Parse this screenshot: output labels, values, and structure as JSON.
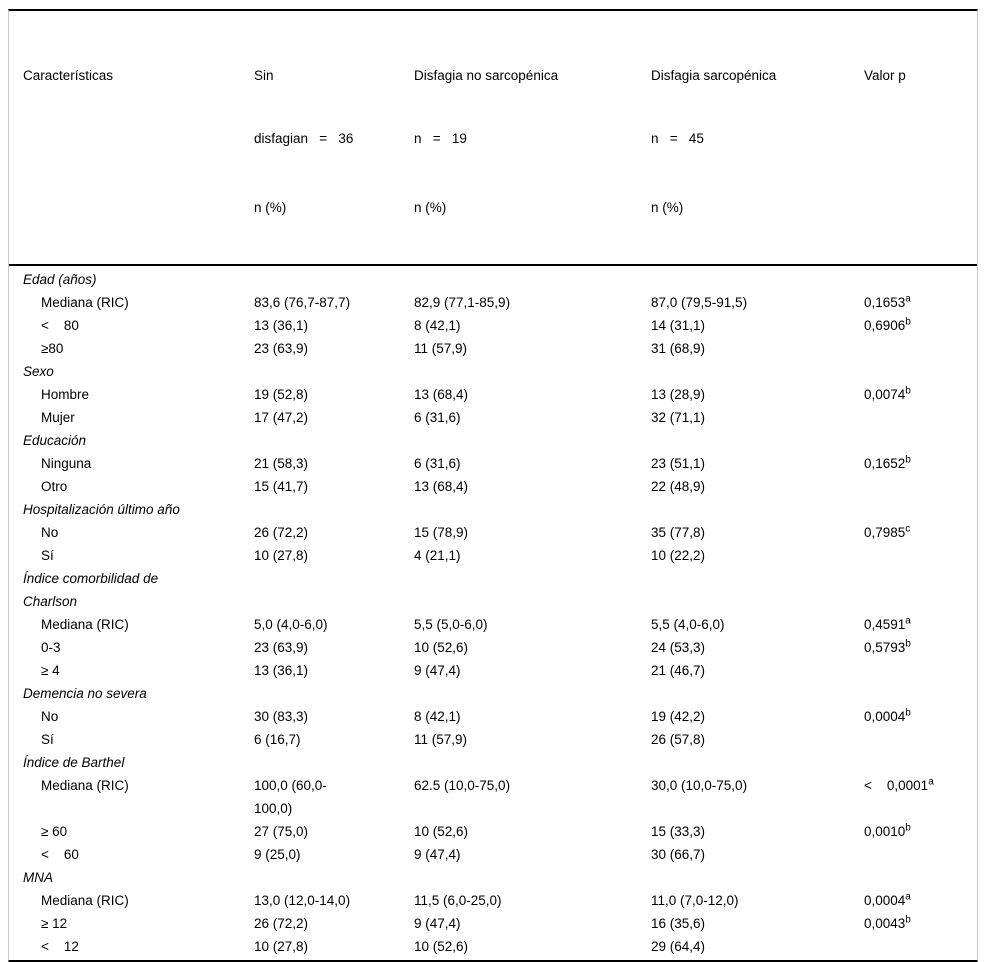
{
  "header": {
    "col1": "Características",
    "col2_line1": "Sin",
    "col2_line2": "disfagian   =   36",
    "col2_line3": "n (%)",
    "col3_line1": "Disfagia no sarcopénica",
    "col3_line2": "n   =   19",
    "col3_line3": "n (%)",
    "col4_line1": "Disfagia sarcopénica",
    "col4_line2": "n   =   45",
    "col4_line3": "n (%)",
    "col5": "Valor p"
  },
  "rows": [
    {
      "kind": "section",
      "label": "Edad (años)"
    },
    {
      "kind": "item",
      "label": "Mediana (RIC)",
      "cells": [
        "83,6 (76,7-87,7)",
        "82,9 (77,1-85,9)",
        "87,0 (79,5-91,5)"
      ],
      "p": "0,1653",
      "p_sup": "a"
    },
    {
      "kind": "item",
      "label": "<    80",
      "cells": [
        "13 (36,1)",
        "8 (42,1)",
        "14 (31,1)"
      ],
      "p": "0,6906",
      "p_sup": "b"
    },
    {
      "kind": "item",
      "label": "≥80",
      "cells": [
        "23 (63,9)",
        "11 (57,9)",
        "31 (68,9)"
      ]
    },
    {
      "kind": "section",
      "label": "Sexo"
    },
    {
      "kind": "item",
      "label": "Hombre",
      "cells": [
        "19 (52,8)",
        "13 (68,4)",
        "13 (28,9)"
      ],
      "p": "0,0074",
      "p_sup": "b"
    },
    {
      "kind": "item",
      "label": "Mujer",
      "cells": [
        "17 (47,2)",
        "6 (31,6)",
        "32 (71,1)"
      ]
    },
    {
      "kind": "section",
      "label": "Educación"
    },
    {
      "kind": "item",
      "label": "Ninguna",
      "cells": [
        "21 (58,3)",
        "6 (31,6)",
        "23 (51,1)"
      ],
      "p": "0,1652",
      "p_sup": "b"
    },
    {
      "kind": "item",
      "label": "Otro",
      "cells": [
        "15 (41,7)",
        "13 (68,4)",
        "22 (48,9)"
      ]
    },
    {
      "kind": "section",
      "label": "Hospitalización último año"
    },
    {
      "kind": "item",
      "label": "No",
      "cells": [
        "26 (72,2)",
        "15 (78,9)",
        "35 (77,8)"
      ],
      "p": "0,7985",
      "p_sup": "c"
    },
    {
      "kind": "item",
      "label": "Sí",
      "cells": [
        "10 (27,8)",
        "4 (21,1)",
        "10 (22,2)"
      ]
    },
    {
      "kind": "section",
      "label": "Índice comorbilidad de\nCharlson"
    },
    {
      "kind": "item",
      "label": "Mediana (RIC)",
      "cells": [
        "5,0 (4,0-6,0)",
        "5,5 (5,0-6,0)",
        "5,5 (4,0-6,0)"
      ],
      "p": "0,4591",
      "p_sup": "a"
    },
    {
      "kind": "item",
      "label": "0-3",
      "cells": [
        "23 (63,9)",
        "10 (52,6)",
        "24 (53,3)"
      ],
      "p": "0,5793",
      "p_sup": "b"
    },
    {
      "kind": "item",
      "label": "≥ 4",
      "cells": [
        "13 (36,1)",
        "9 (47,4)",
        "21 (46,7)"
      ]
    },
    {
      "kind": "section",
      "label": "Demencia no severa"
    },
    {
      "kind": "item",
      "label": "No",
      "cells": [
        "30 (83,3)",
        "8 (42,1)",
        "19 (42,2)"
      ],
      "p": "0,0004",
      "p_sup": "b"
    },
    {
      "kind": "item",
      "label": "Sí",
      "cells": [
        "6 (16,7)",
        "11 (57,9)",
        "26 (57,8)"
      ]
    },
    {
      "kind": "section",
      "label": "Índice de Barthel"
    },
    {
      "kind": "item",
      "label": "Mediana (RIC)",
      "cells": [
        "100,0 (60,0-\n100,0)",
        "62.5 (10,0-75,0)",
        "30,0 (10,0-75,0)"
      ],
      "p": "<    0,0001",
      "p_sup": "a"
    },
    {
      "kind": "item",
      "label": "≥ 60",
      "cells": [
        "27 (75,0)",
        "10 (52,6)",
        "15 (33,3)"
      ],
      "p": "0,0010",
      "p_sup": "b"
    },
    {
      "kind": "item",
      "label": "<    60",
      "cells": [
        "9 (25,0)",
        "9 (47,4)",
        "30 (66,7)"
      ]
    },
    {
      "kind": "section",
      "label": "MNA"
    },
    {
      "kind": "item",
      "label": "Mediana (RIC)",
      "cells": [
        "13,0 (12,0-14,0)",
        "11,5 (6,0-25,0)",
        "11,0 (7,0-12,0)"
      ],
      "p": "0,0004",
      "p_sup": "a"
    },
    {
      "kind": "item",
      "label": "≥ 12",
      "cells": [
        "26 (72,2)",
        "9 (47,4)",
        "16 (35,6)"
      ],
      "p": "0,0043",
      "p_sup": "b"
    },
    {
      "kind": "item",
      "label": "<    12",
      "cells": [
        "10 (27,8)",
        "10 (52,6)",
        "29 (64,4)"
      ]
    }
  ]
}
